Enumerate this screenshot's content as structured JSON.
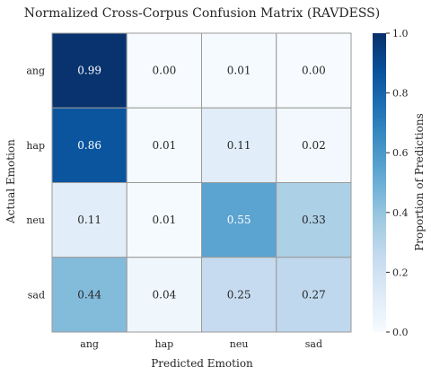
{
  "chart_data": {
    "type": "heatmap",
    "title": "Normalized Cross-Corpus Confusion Matrix (RAVDESS)",
    "xlabel": "Predicted Emotion",
    "ylabel": "Actual Emotion",
    "x_categories": [
      "ang",
      "hap",
      "neu",
      "sad"
    ],
    "y_categories": [
      "ang",
      "hap",
      "neu",
      "sad"
    ],
    "values": [
      [
        0.99,
        0.0,
        0.01,
        0.0
      ],
      [
        0.86,
        0.01,
        0.11,
        0.02
      ],
      [
        0.11,
        0.01,
        0.55,
        0.33
      ],
      [
        0.44,
        0.04,
        0.25,
        0.27
      ]
    ],
    "value_labels": [
      [
        "0.99",
        "0.00",
        "0.01",
        "0.00"
      ],
      [
        "0.86",
        "0.01",
        "0.11",
        "0.02"
      ],
      [
        "0.11",
        "0.01",
        "0.55",
        "0.33"
      ],
      [
        "0.44",
        "0.04",
        "0.25",
        "0.27"
      ]
    ],
    "colormap": "Blues",
    "colorbar": {
      "label": "Proportion of Predictions",
      "range": [
        0.0,
        1.0
      ],
      "ticks": [
        0.0,
        0.2,
        0.4,
        0.6,
        0.8,
        1.0
      ],
      "tick_labels": [
        "0.0",
        "0.2",
        "0.4",
        "0.6",
        "0.8",
        "1.0"
      ],
      "position": "right"
    }
  }
}
